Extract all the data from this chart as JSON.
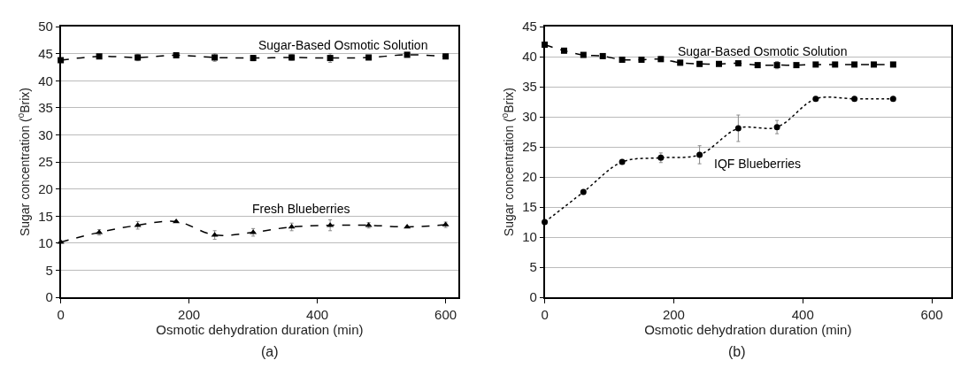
{
  "chart_data": [
    {
      "type": "line",
      "title": "(a)",
      "xlabel": "Osmotic dehydration duration (min)",
      "ylabel": "Sugar concentration ($^{0}$Brix)",
      "x": [
        0,
        60,
        120,
        180,
        240,
        300,
        360,
        420,
        480,
        540,
        600
      ],
      "xlim": [
        0,
        620
      ],
      "xticks": [
        0,
        200,
        400,
        600
      ],
      "ylim": [
        0,
        50
      ],
      "yticks": [
        0,
        5,
        10,
        15,
        20,
        25,
        30,
        35,
        40,
        45,
        50
      ],
      "grid": "y",
      "legend": false,
      "series": [
        {
          "name": "Sugar-Based Osmotic Solution",
          "color": "#000000",
          "marker": "square",
          "line_style": "dashed",
          "values": [
            43.8,
            44.5,
            44.3,
            44.7,
            44.3,
            44.2,
            44.3,
            44.2,
            44.3,
            44.8,
            44.5
          ],
          "errors": [
            null,
            null,
            0.6,
            null,
            0.7,
            0.5,
            0.5,
            0.8,
            null,
            null,
            null
          ]
        },
        {
          "name": "Fresh Blueberries",
          "color": "#000000",
          "marker": "triangle",
          "line_style": "dashed",
          "values": [
            10.2,
            12.0,
            13.3,
            14.0,
            11.5,
            12.0,
            13.0,
            13.3,
            13.3,
            13.0,
            13.4
          ],
          "errors": [
            null,
            0.5,
            0.7,
            null,
            0.8,
            0.7,
            0.7,
            1.0,
            0.5,
            null,
            0.5
          ]
        }
      ]
    },
    {
      "type": "line",
      "title": "(b)",
      "xlabel": "Osmotic dehydration duration (min)",
      "ylabel": "Sugar concentration ($^{0}$Brix)",
      "xlim": [
        0,
        630
      ],
      "xticks": [
        0,
        200,
        400,
        600
      ],
      "ylim": [
        0,
        45
      ],
      "yticks": [
        0,
        5,
        10,
        15,
        20,
        25,
        30,
        35,
        40,
        45
      ],
      "grid": "y",
      "legend": false,
      "series": [
        {
          "name": "Sugar-Based Osmotic Solution",
          "color": "#000000",
          "marker": "square",
          "line_style": "dashed",
          "x": [
            0,
            30,
            60,
            90,
            120,
            150,
            180,
            210,
            240,
            270,
            300,
            330,
            360,
            390,
            420,
            450,
            480,
            510,
            540
          ],
          "values": [
            42.0,
            41.0,
            40.3,
            40.1,
            39.5,
            39.5,
            39.6,
            39.0,
            38.8,
            38.8,
            38.9,
            38.6,
            38.6,
            38.6,
            38.7,
            38.7,
            38.7,
            38.7,
            38.7
          ],
          "errors": [
            null,
            null,
            null,
            null,
            null,
            null,
            0.4,
            0.4,
            0.4,
            null,
            null,
            null,
            0.6,
            null,
            null,
            null,
            null,
            null,
            null
          ]
        },
        {
          "name": "IQF Blueberries",
          "color": "#000000",
          "marker": "circle",
          "line_style": "dotted",
          "x": [
            0,
            60,
            120,
            180,
            240,
            300,
            360,
            420,
            480,
            540
          ],
          "values": [
            12.5,
            17.5,
            22.5,
            23.2,
            23.7,
            28.1,
            28.3,
            33.0,
            33.0,
            33.0
          ],
          "errors": [
            null,
            null,
            null,
            0.8,
            1.5,
            2.2,
            1.1,
            null,
            null,
            null
          ]
        }
      ]
    }
  ]
}
